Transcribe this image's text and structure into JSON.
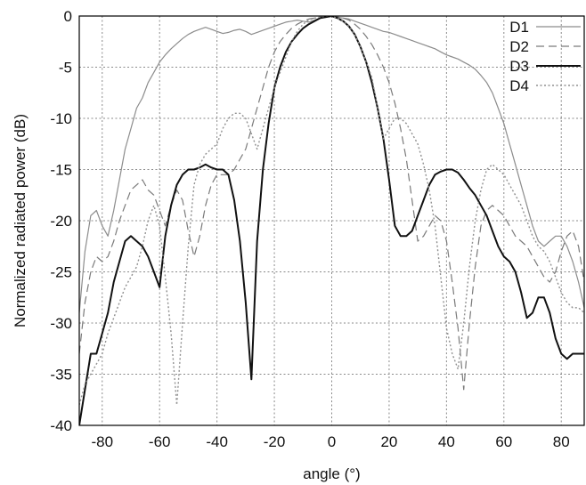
{
  "chart_data": {
    "type": "line",
    "title": "",
    "xlabel": "angle (°)",
    "ylabel": "Normalized radiated power (dB)",
    "xlim": [
      -88,
      88
    ],
    "ylim": [
      -40,
      0
    ],
    "xticks": [
      -80,
      -60,
      -40,
      -20,
      0,
      20,
      40,
      60,
      80
    ],
    "yticks": [
      0,
      -5,
      -10,
      -15,
      -20,
      -25,
      -30,
      -35,
      -40
    ],
    "grid": true,
    "legend": "top-right",
    "series": [
      {
        "name": "D1",
        "color": "#8c8c8c",
        "dash": "",
        "width": 1.2,
        "x": [
          -88,
          -86,
          -84,
          -82,
          -80,
          -78,
          -76,
          -74,
          -72,
          -70,
          -68,
          -66,
          -64,
          -62,
          -60,
          -58,
          -56,
          -54,
          -52,
          -50,
          -48,
          -46,
          -44,
          -42,
          -40,
          -38,
          -36,
          -34,
          -32,
          -30,
          -28,
          -26,
          -24,
          -22,
          -20,
          -18,
          -16,
          -14,
          -12,
          -10,
          -8,
          -6,
          -4,
          -2,
          0,
          2,
          4,
          6,
          8,
          10,
          12,
          14,
          16,
          18,
          20,
          22,
          24,
          26,
          28,
          30,
          32,
          34,
          36,
          38,
          40,
          42,
          44,
          46,
          48,
          50,
          52,
          54,
          56,
          58,
          60,
          62,
          64,
          66,
          68,
          70,
          72,
          74,
          76,
          78,
          80,
          82,
          84,
          86,
          88
        ],
        "y": [
          -29,
          -23,
          -19.5,
          -19,
          -20.5,
          -21.5,
          -19,
          -16,
          -13,
          -11,
          -9,
          -8,
          -6.5,
          -5.5,
          -4.5,
          -3.8,
          -3.2,
          -2.7,
          -2.2,
          -1.8,
          -1.5,
          -1.3,
          -1.1,
          -1.3,
          -1.5,
          -1.7,
          -1.6,
          -1.4,
          -1.3,
          -1.5,
          -1.8,
          -1.6,
          -1.4,
          -1.2,
          -1.0,
          -0.8,
          -0.6,
          -0.5,
          -0.4,
          -0.5,
          -0.6,
          -0.4,
          -0.2,
          -0.1,
          0,
          -0.1,
          -0.2,
          -0.3,
          -0.5,
          -0.7,
          -0.9,
          -1.1,
          -1.3,
          -1.5,
          -1.6,
          -1.8,
          -2.0,
          -2.2,
          -2.4,
          -2.6,
          -2.8,
          -3.0,
          -3.2,
          -3.5,
          -3.8,
          -4.0,
          -4.2,
          -4.5,
          -4.8,
          -5.2,
          -5.8,
          -6.5,
          -7.5,
          -9.0,
          -10.5,
          -12.5,
          -14.5,
          -16.5,
          -18.5,
          -20.5,
          -22.0,
          -22.5,
          -22.0,
          -21.5,
          -21.5,
          -22.5,
          -24.0,
          -26.0,
          -28.5
        ]
      },
      {
        "name": "D2",
        "color": "#7a7a7a",
        "dash": "9 5",
        "width": 1.2,
        "x": [
          -88,
          -86,
          -84,
          -82,
          -80,
          -78,
          -76,
          -74,
          -72,
          -70,
          -68,
          -66,
          -64,
          -62,
          -60,
          -58,
          -56,
          -54,
          -52,
          -50,
          -48,
          -46,
          -44,
          -42,
          -40,
          -38,
          -36,
          -34,
          -32,
          -30,
          -28,
          -26,
          -24,
          -22,
          -20,
          -18,
          -16,
          -14,
          -12,
          -10,
          -8,
          -6,
          -4,
          -2,
          0,
          2,
          4,
          6,
          8,
          10,
          12,
          14,
          16,
          18,
          20,
          22,
          24,
          26,
          28,
          30,
          32,
          34,
          36,
          38,
          40,
          42,
          44,
          46,
          48,
          50,
          52,
          54,
          56,
          58,
          60,
          62,
          64,
          66,
          68,
          70,
          72,
          74,
          76,
          78,
          80,
          82,
          84,
          86,
          88
        ],
        "y": [
          -33,
          -28,
          -25,
          -23.5,
          -24,
          -23.5,
          -22,
          -20,
          -18.5,
          -17,
          -16.5,
          -16,
          -17,
          -17.5,
          -19,
          -20.5,
          -18.5,
          -17,
          -18,
          -21,
          -23.5,
          -21.5,
          -18.5,
          -16.5,
          -15.5,
          -15.5,
          -15.5,
          -15.0,
          -14.0,
          -13.0,
          -11.0,
          -9.0,
          -7.0,
          -5.0,
          -3.5,
          -2.5,
          -1.8,
          -1.2,
          -0.8,
          -0.5,
          -0.3,
          -0.2,
          -0.1,
          0,
          0,
          -0.1,
          -0.2,
          -0.4,
          -0.8,
          -1.3,
          -2.0,
          -2.8,
          -3.8,
          -5.0,
          -6.5,
          -8.5,
          -11.0,
          -14.0,
          -18.0,
          -22.0,
          -21.5,
          -20.5,
          -19.5,
          -20.0,
          -22.0,
          -26.0,
          -30.5,
          -36.5,
          -30.0,
          -24.5,
          -20.5,
          -19.0,
          -18.5,
          -19.0,
          -19.5,
          -20.5,
          -21.5,
          -22.0,
          -22.5,
          -23.5,
          -24.5,
          -25.5,
          -26.0,
          -25.0,
          -23.0,
          -21.5,
          -21.0,
          -22.5,
          -26.0
        ]
      },
      {
        "name": "D3",
        "color": "#111111",
        "dash": "",
        "width": 2,
        "x": [
          -88,
          -86,
          -84,
          -82,
          -80,
          -78,
          -76,
          -74,
          -72,
          -70,
          -68,
          -66,
          -64,
          -62,
          -60,
          -58,
          -56,
          -54,
          -52,
          -50,
          -48,
          -46,
          -44,
          -42,
          -40,
          -38,
          -36,
          -34,
          -32,
          -30,
          -28,
          -26,
          -24,
          -22,
          -20,
          -18,
          -16,
          -14,
          -12,
          -10,
          -8,
          -6,
          -4,
          -2,
          0,
          2,
          4,
          6,
          8,
          10,
          12,
          14,
          16,
          18,
          20,
          22,
          24,
          26,
          28,
          30,
          32,
          34,
          36,
          38,
          40,
          42,
          44,
          46,
          48,
          50,
          52,
          54,
          56,
          58,
          60,
          62,
          64,
          66,
          68,
          70,
          72,
          74,
          76,
          78,
          80,
          82,
          84,
          86,
          88
        ],
        "y": [
          -40,
          -36.5,
          -33,
          -33,
          -31,
          -29,
          -26,
          -24,
          -22,
          -21.5,
          -22,
          -22.5,
          -23.5,
          -25,
          -26.5,
          -21.5,
          -18.5,
          -16.5,
          -15.5,
          -15.0,
          -15.0,
          -14.8,
          -14.5,
          -14.8,
          -15.0,
          -15.0,
          -15.5,
          -18.0,
          -22.0,
          -28.0,
          -35.5,
          -22.0,
          -15.0,
          -10.5,
          -7.0,
          -5.0,
          -3.5,
          -2.5,
          -1.8,
          -1.2,
          -0.8,
          -0.5,
          -0.2,
          -0.1,
          0,
          -0.2,
          -0.5,
          -1.0,
          -1.8,
          -3.0,
          -4.5,
          -6.5,
          -9.0,
          -12.0,
          -16.0,
          -20.5,
          -21.5,
          -21.5,
          -21.0,
          -19.5,
          -18.0,
          -16.5,
          -15.5,
          -15.2,
          -15.0,
          -15.0,
          -15.3,
          -16.0,
          -16.8,
          -17.5,
          -18.5,
          -19.5,
          -21.0,
          -22.5,
          -23.5,
          -24.0,
          -25.0,
          -27.0,
          -29.5,
          -29.0,
          -27.5,
          -27.5,
          -29.0,
          -31.5,
          -33.0,
          -33.5,
          -33,
          -33,
          -33
        ]
      },
      {
        "name": "D4",
        "color": "#909090",
        "dash": "2 2.5",
        "width": 1.4,
        "x": [
          -88,
          -86,
          -84,
          -82,
          -80,
          -78,
          -76,
          -74,
          -72,
          -70,
          -68,
          -66,
          -64,
          -62,
          -60,
          -58,
          -56,
          -54,
          -52,
          -50,
          -48,
          -46,
          -44,
          -42,
          -40,
          -38,
          -36,
          -34,
          -32,
          -30,
          -28,
          -26,
          -24,
          -22,
          -20,
          -18,
          -16,
          -14,
          -12,
          -10,
          -8,
          -6,
          -4,
          -2,
          0,
          2,
          4,
          6,
          8,
          10,
          12,
          14,
          16,
          18,
          20,
          22,
          24,
          26,
          28,
          30,
          32,
          34,
          36,
          38,
          40,
          42,
          44,
          46,
          48,
          50,
          52,
          54,
          56,
          58,
          60,
          62,
          64,
          66,
          68,
          70,
          72,
          74,
          76,
          78,
          80,
          82,
          84,
          86,
          88
        ],
        "y": [
          -38,
          -36,
          -35,
          -34,
          -33,
          -31,
          -29.5,
          -28,
          -26.5,
          -25.5,
          -24.5,
          -22.5,
          -20.0,
          -18.5,
          -20.5,
          -25.5,
          -31.0,
          -38.0,
          -30.0,
          -22.5,
          -16.5,
          -14.5,
          -13.5,
          -13.0,
          -12.5,
          -11.0,
          -10.0,
          -9.5,
          -9.5,
          -10.0,
          -11.5,
          -13.0,
          -11.0,
          -9.0,
          -7.0,
          -5.5,
          -4.0,
          -2.5,
          -1.5,
          -0.8,
          -0.4,
          -0.2,
          -0.1,
          0,
          0,
          -0.2,
          -0.5,
          -1.0,
          -1.8,
          -3.0,
          -4.5,
          -6.0,
          -9.0,
          -12.0,
          -11.0,
          -10.0,
          -10.0,
          -10.5,
          -11.5,
          -12.5,
          -14.5,
          -17.0,
          -20.5,
          -25.5,
          -30.5,
          -33.0,
          -34.5,
          -30.0,
          -24.5,
          -20.0,
          -17.0,
          -15.0,
          -14.5,
          -15.0,
          -15.5,
          -16.5,
          -17.5,
          -18.5,
          -20.0,
          -21.5,
          -22.5,
          -23.0,
          -24.0,
          -25.5,
          -27.0,
          -28.0,
          -28.5,
          -28.5,
          -29.0
        ]
      }
    ]
  }
}
